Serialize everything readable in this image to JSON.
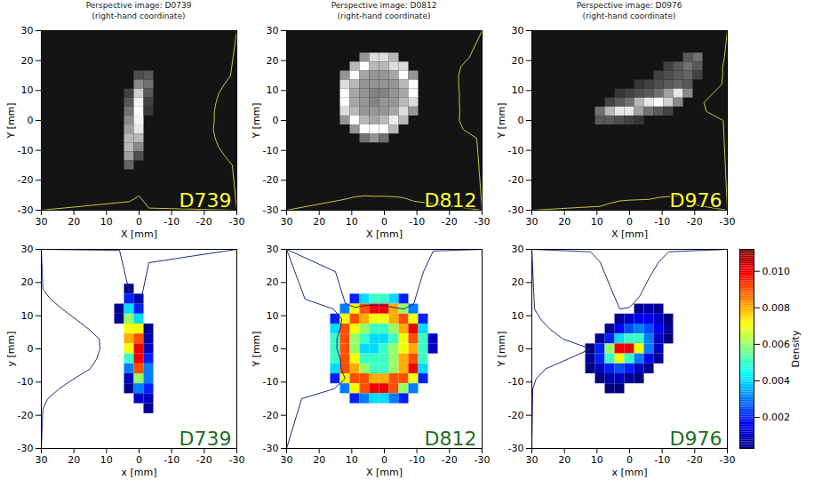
{
  "chart_data": [
    {
      "type": "image",
      "title": [
        "Perspective image: D0739",
        "(right-hand coordinate)"
      ],
      "x_label": "X [mm]",
      "y_label": "Y [mm]",
      "xlim": [
        30,
        -30
      ],
      "ylim": [
        -30,
        30
      ],
      "xticks": [
        30,
        20,
        10,
        0,
        -10,
        -20,
        -30
      ],
      "yticks": [
        -30,
        -20,
        -10,
        0,
        10,
        20,
        30
      ],
      "annotations": [
        {
          "text": "D739"
        }
      ],
      "x": [
        3,
        0,
        -3
      ],
      "y": [
        15,
        12,
        9,
        6,
        3,
        0,
        -3,
        -6,
        -9,
        -12,
        -15
      ],
      "values": [
        [
          0,
          0.15,
          0.2
        ],
        [
          0,
          0.4,
          0.3
        ],
        [
          0.1,
          0.7,
          0.2
        ],
        [
          0.2,
          0.85,
          0.1
        ],
        [
          0.3,
          0.9,
          0.05
        ],
        [
          0.4,
          0.85,
          0
        ],
        [
          0.5,
          0.8,
          0
        ],
        [
          0.6,
          0.6,
          0
        ],
        [
          0.6,
          0.4,
          0
        ],
        [
          0.5,
          0.15,
          0
        ],
        [
          0.25,
          0,
          0
        ]
      ]
    },
    {
      "type": "image",
      "title": [
        "Perspective image: D0812",
        "(right-hand coordinate)"
      ],
      "x_label": "X [mm]",
      "y_label": "Y [mm]",
      "xlim": [
        30,
        -30
      ],
      "ylim": [
        -30,
        30
      ],
      "xticks": [
        30,
        20,
        10,
        0,
        -10,
        -20,
        -30
      ],
      "yticks": [
        -30,
        -20,
        -10,
        0,
        10,
        20,
        30
      ],
      "annotations": [
        {
          "text": "D812"
        }
      ],
      "x": [
        12,
        9,
        6,
        3,
        0,
        -3,
        -6,
        -9
      ],
      "y": [
        21,
        18,
        15,
        12,
        9,
        6,
        3,
        0,
        -3,
        -6
      ],
      "values": [
        [
          0,
          0,
          0.3,
          0.5,
          0.5,
          0.4,
          0,
          0
        ],
        [
          0,
          0.4,
          0.6,
          0.4,
          0.4,
          0.5,
          0.5,
          0
        ],
        [
          0.3,
          0.6,
          0.35,
          0.3,
          0.3,
          0.35,
          0.6,
          0.3
        ],
        [
          0.5,
          0.4,
          0.3,
          0.3,
          0.3,
          0.3,
          0.4,
          0.6
        ],
        [
          0.6,
          0.35,
          0.3,
          0.25,
          0.25,
          0.3,
          0.35,
          0.6
        ],
        [
          0.6,
          0.35,
          0.3,
          0.25,
          0.3,
          0.3,
          0.4,
          0.5
        ],
        [
          0.5,
          0.4,
          0.3,
          0.3,
          0.3,
          0.35,
          0.5,
          0.3
        ],
        [
          0.3,
          0.6,
          0.4,
          0.35,
          0.4,
          0.55,
          0.4,
          0
        ],
        [
          0,
          0.3,
          0.6,
          0.6,
          0.6,
          0.4,
          0,
          0
        ],
        [
          0,
          0,
          0.2,
          0.3,
          0.2,
          0,
          0,
          0
        ]
      ]
    },
    {
      "type": "image",
      "title": [
        "Perspective image: D0976",
        "(right-hand coordinate)"
      ],
      "x_label": "X [mm]",
      "y_label": "Y [mm]",
      "xlim": [
        30,
        -30
      ],
      "ylim": [
        -30,
        30
      ],
      "xticks": [
        30,
        20,
        10,
        0,
        -10,
        -20,
        -30
      ],
      "yticks": [
        -30,
        -20,
        -10,
        0,
        10,
        20,
        30
      ],
      "annotations": [
        {
          "text": "D976"
        }
      ],
      "x": [
        9,
        6,
        3,
        0,
        -3,
        -6,
        -9,
        -12,
        -15,
        -18,
        -21
      ],
      "y": [
        21,
        18,
        15,
        12,
        9,
        6,
        3,
        0
      ],
      "values": [
        [
          0,
          0,
          0,
          0,
          0,
          0,
          0,
          0,
          0,
          0.2,
          0.3
        ],
        [
          0,
          0,
          0,
          0,
          0,
          0,
          0,
          0.1,
          0.2,
          0.3,
          0.2
        ],
        [
          0,
          0,
          0,
          0,
          0,
          0,
          0.1,
          0.15,
          0.2,
          0.25,
          0.1
        ],
        [
          0,
          0,
          0,
          0,
          0.05,
          0.1,
          0.15,
          0.2,
          0.25,
          0.2,
          0
        ],
        [
          0,
          0,
          0.05,
          0.1,
          0.15,
          0.2,
          0.3,
          0.5,
          0.8,
          0.4,
          0
        ],
        [
          0,
          0.1,
          0.2,
          0.3,
          0.6,
          0.8,
          0.9,
          0.7,
          0.4,
          0,
          0
        ],
        [
          0.3,
          0.6,
          0.8,
          0.8,
          0.5,
          0.3,
          0.2,
          0.1,
          0,
          0,
          0
        ],
        [
          0.2,
          0.2,
          0.15,
          0.1,
          0.05,
          0,
          0,
          0,
          0,
          0,
          0
        ]
      ]
    },
    {
      "type": "density",
      "x_label": "x [mm]",
      "y_label": "y [mm]",
      "xlim": [
        30,
        -30
      ],
      "ylim": [
        -30,
        30
      ],
      "xticks": [
        30,
        20,
        10,
        0,
        -10,
        -20,
        -30
      ],
      "yticks": [
        -30,
        -20,
        -10,
        0,
        10,
        20,
        30
      ],
      "annotations": [
        {
          "text": "D739"
        }
      ],
      "x": [
        6,
        3,
        0,
        -3
      ],
      "y": [
        18,
        15,
        12,
        9,
        6,
        3,
        0,
        -3,
        -6,
        -9,
        -12,
        -15,
        -18
      ],
      "values": [
        [
          0,
          0.0005,
          0,
          0
        ],
        [
          0,
          0.002,
          0.0008,
          0
        ],
        [
          0.0005,
          0.004,
          0.002,
          0
        ],
        [
          0.0005,
          0.006,
          0.004,
          0
        ],
        [
          0,
          0.007,
          0.007,
          0.0005
        ],
        [
          0,
          0.008,
          0.009,
          0.0008
        ],
        [
          0,
          0.007,
          0.01,
          0.001
        ],
        [
          0,
          0.005,
          0.01,
          0.002
        ],
        [
          0,
          0.003,
          0.009,
          0.003
        ],
        [
          0,
          0.001,
          0.006,
          0.003
        ],
        [
          0,
          0.0005,
          0.003,
          0.002
        ],
        [
          0,
          0,
          0.001,
          0.001
        ],
        [
          0,
          0,
          0,
          0.0005
        ]
      ]
    },
    {
      "type": "density",
      "x_label": "X [mm]",
      "y_label": "Y [mm]",
      "xlim": [
        30,
        -30
      ],
      "ylim": [
        -30,
        30
      ],
      "xticks": [
        30,
        20,
        10,
        0,
        -10,
        -20,
        -30
      ],
      "yticks": [
        -30,
        -20,
        -10,
        0,
        10,
        20,
        30
      ],
      "annotations": [
        {
          "text": "D812"
        }
      ],
      "x": [
        15,
        12,
        9,
        6,
        3,
        0,
        -3,
        -6,
        -9,
        -12,
        -15
      ],
      "y": [
        15,
        12,
        9,
        6,
        3,
        0,
        -3,
        -6,
        -9,
        -12,
        -15
      ],
      "values": [
        [
          0,
          0,
          0.002,
          0.004,
          0.005,
          0.005,
          0.004,
          0.002,
          0,
          0,
          0
        ],
        [
          0,
          0.003,
          0.007,
          0.009,
          0.01,
          0.01,
          0.008,
          0.006,
          0.003,
          0,
          0
        ],
        [
          0.002,
          0.007,
          0.009,
          0.008,
          0.007,
          0.007,
          0.008,
          0.009,
          0.007,
          0.002,
          0
        ],
        [
          0.004,
          0.009,
          0.007,
          0.006,
          0.005,
          0.005,
          0.006,
          0.008,
          0.01,
          0.004,
          0
        ],
        [
          0.005,
          0.009,
          0.006,
          0.005,
          0.004,
          0.004,
          0.005,
          0.007,
          0.009,
          0.005,
          0.001
        ],
        [
          0.005,
          0.009,
          0.006,
          0.004,
          0.004,
          0.005,
          0.006,
          0.007,
          0.008,
          0.005,
          0.001
        ],
        [
          0.005,
          0.009,
          0.007,
          0.005,
          0.005,
          0.005,
          0.006,
          0.008,
          0.009,
          0.005,
          0
        ],
        [
          0.004,
          0.009,
          0.008,
          0.006,
          0.005,
          0.005,
          0.006,
          0.008,
          0.01,
          0.004,
          0
        ],
        [
          0.002,
          0.007,
          0.009,
          0.009,
          0.008,
          0.008,
          0.009,
          0.009,
          0.007,
          0.002,
          0
        ],
        [
          0,
          0.003,
          0.007,
          0.009,
          0.01,
          0.01,
          0.009,
          0.006,
          0.003,
          0,
          0
        ],
        [
          0,
          0,
          0.002,
          0.003,
          0.004,
          0.004,
          0.003,
          0.002,
          0,
          0,
          0
        ]
      ]
    },
    {
      "type": "density",
      "x_label": "x [mm]",
      "y_label": "Y [mm]",
      "xlim": [
        30,
        -30
      ],
      "ylim": [
        -30,
        30
      ],
      "xticks": [
        30,
        20,
        10,
        0,
        -10,
        -20,
        -30
      ],
      "yticks": [
        -30,
        -20,
        -10,
        0,
        10,
        20,
        30
      ],
      "annotations": [
        {
          "text": "D976"
        }
      ],
      "x": [
        12,
        9,
        6,
        3,
        0,
        -3,
        -6,
        -9,
        -12
      ],
      "y": [
        12,
        9,
        6,
        3,
        0,
        -3,
        -6,
        -9,
        -12
      ],
      "values": [
        [
          0,
          0,
          0,
          0,
          0,
          0.0005,
          0.0008,
          0.0005,
          0
        ],
        [
          0,
          0,
          0,
          0.0005,
          0.001,
          0.0015,
          0.0015,
          0.001,
          0.0003
        ],
        [
          0,
          0,
          0.0005,
          0.0015,
          0.0025,
          0.003,
          0.0025,
          0.0015,
          0.0005
        ],
        [
          0,
          0.0005,
          0.002,
          0.004,
          0.005,
          0.005,
          0.003,
          0.001,
          0.0003
        ],
        [
          0.0003,
          0.002,
          0.006,
          0.01,
          0.01,
          0.007,
          0.003,
          0.001,
          0
        ],
        [
          0.0005,
          0.002,
          0.005,
          0.007,
          0.005,
          0.003,
          0.0015,
          0.0005,
          0
        ],
        [
          0.0003,
          0.001,
          0.002,
          0.0025,
          0.002,
          0.001,
          0.0005,
          0,
          0
        ],
        [
          0,
          0.0003,
          0.0008,
          0.001,
          0.0005,
          0.0003,
          0,
          0,
          0
        ],
        [
          0,
          0,
          0.0003,
          0.0003,
          0,
          0,
          0,
          0,
          0
        ]
      ]
    }
  ],
  "colorbar": {
    "label": "Density",
    "range": [
      0.0003,
      0.0112
    ],
    "ticks": [
      0.002,
      0.004,
      0.006,
      0.008,
      {
        "value": 0.01,
        "label": "0.010"
      }
    ]
  }
}
